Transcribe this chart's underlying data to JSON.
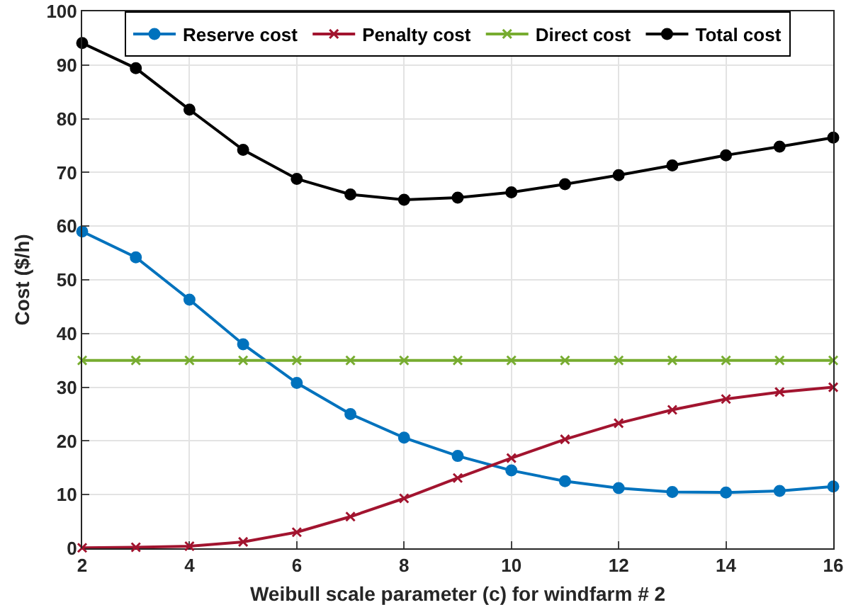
{
  "chart_data": {
    "type": "line",
    "xlabel": "Weibull scale parameter (c) for windfarm # 2",
    "ylabel": "Cost ($/h)",
    "x": [
      2,
      3,
      4,
      5,
      6,
      7,
      8,
      9,
      10,
      11,
      12,
      13,
      14,
      15,
      16
    ],
    "series": [
      {
        "name": "Reserve cost",
        "color": "#0072bd",
        "marker": "circle",
        "values": [
          59,
          54.2,
          46.3,
          38,
          30.8,
          25,
          20.6,
          17.2,
          14.5,
          12.5,
          11.2,
          10.5,
          10.4,
          10.7,
          11.5
        ]
      },
      {
        "name": "Penalty cost",
        "color": "#a2142f",
        "marker": "cross",
        "values": [
          0.1,
          0.2,
          0.4,
          1.2,
          3,
          5.9,
          9.3,
          13.1,
          16.8,
          20.3,
          23.3,
          25.8,
          27.8,
          29.1,
          30
        ]
      },
      {
        "name": "Direct cost",
        "color": "#77ac30",
        "marker": "cross",
        "values": [
          35,
          35,
          35,
          35,
          35,
          35,
          35,
          35,
          35,
          35,
          35,
          35,
          35,
          35,
          35
        ]
      },
      {
        "name": "Total cost",
        "color": "#000000",
        "marker": "circle",
        "values": [
          94.1,
          89.4,
          81.7,
          74.2,
          68.8,
          65.9,
          64.9,
          65.3,
          66.3,
          67.8,
          69.5,
          71.3,
          73.2,
          74.8,
          76.5
        ]
      }
    ],
    "xlim": [
      2,
      16
    ],
    "xticks": [
      2,
      4,
      6,
      8,
      10,
      12,
      14,
      16
    ],
    "ylim": [
      0,
      100
    ],
    "yticks": [
      0,
      10,
      20,
      30,
      40,
      50,
      60,
      70,
      80,
      90,
      100
    ],
    "grid": true,
    "legend": "top",
    "line_style": "solid"
  }
}
